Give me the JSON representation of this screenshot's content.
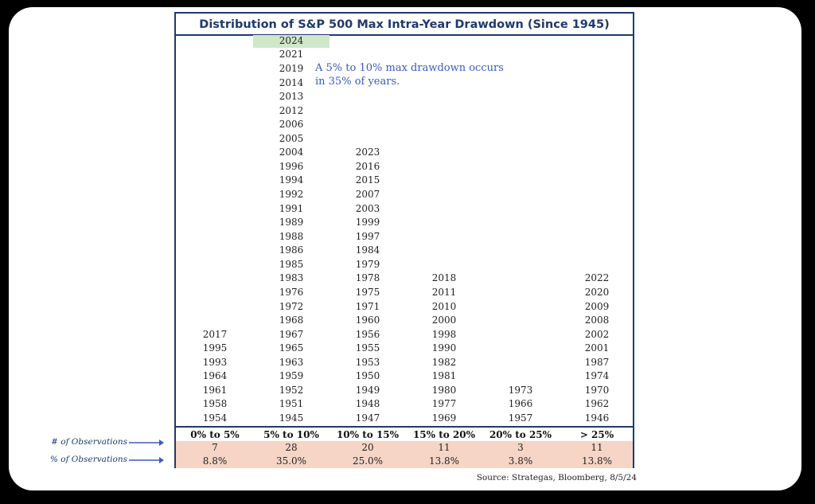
{
  "chart_data": {
    "type": "table",
    "title": "Distribution of S&P 500 Max Intra-Year Drawdown (Since 1945)",
    "bins": [
      {
        "label": "0% to 5%",
        "years": [
          "2017",
          "1995",
          "1993",
          "1964",
          "1961",
          "1958",
          "1954"
        ],
        "count": "7",
        "percent": "8.8%"
      },
      {
        "label": "5% to 10%",
        "years": [
          "2024",
          "2021",
          "2019",
          "2014",
          "2013",
          "2012",
          "2006",
          "2005",
          "2004",
          "1996",
          "1994",
          "1992",
          "1991",
          "1989",
          "1988",
          "1986",
          "1985",
          "1983",
          "1976",
          "1972",
          "1968",
          "1967",
          "1965",
          "1963",
          "1959",
          "1952",
          "1951",
          "1945"
        ],
        "count": "28",
        "percent": "35.0%"
      },
      {
        "label": "10% to 15%",
        "years": [
          "2023",
          "2016",
          "2015",
          "2007",
          "2003",
          "1999",
          "1997",
          "1984",
          "1979",
          "1978",
          "1975",
          "1971",
          "1960",
          "1956",
          "1955",
          "1953",
          "1950",
          "1949",
          "1948",
          "1947"
        ],
        "count": "20",
        "percent": "25.0%"
      },
      {
        "label": "15%  to 20%",
        "years": [
          "2018",
          "2011",
          "2010",
          "2000",
          "1998",
          "1990",
          "1982",
          "1981",
          "1980",
          "1977",
          "1969"
        ],
        "count": "11",
        "percent": "13.8%"
      },
      {
        "label": "20% to 25%",
        "years": [
          "1973",
          "1966",
          "1957"
        ],
        "count": "3",
        "percent": "3.8%"
      },
      {
        "label": "> 25%",
        "years": [
          "2022",
          "2020",
          "2009",
          "2008",
          "2002",
          "2001",
          "1987",
          "1974",
          "1970",
          "1962",
          "1946"
        ],
        "count": "11",
        "percent": "13.8%"
      }
    ],
    "highlighted_year": "2024",
    "annotation": [
      "A 5% to 10% max drawdown occurs",
      "in 35% of years."
    ],
    "row_labels": {
      "count": "# of Observations",
      "percent": "% of Observations"
    },
    "source": "Source: Strategas, Bloomberg, 8/5/24",
    "colors": {
      "border": "#1f3a6e",
      "highlight": "#cfe8c8",
      "stats_band": "#f6d5c6",
      "annotation": "#3b5bb5"
    }
  }
}
